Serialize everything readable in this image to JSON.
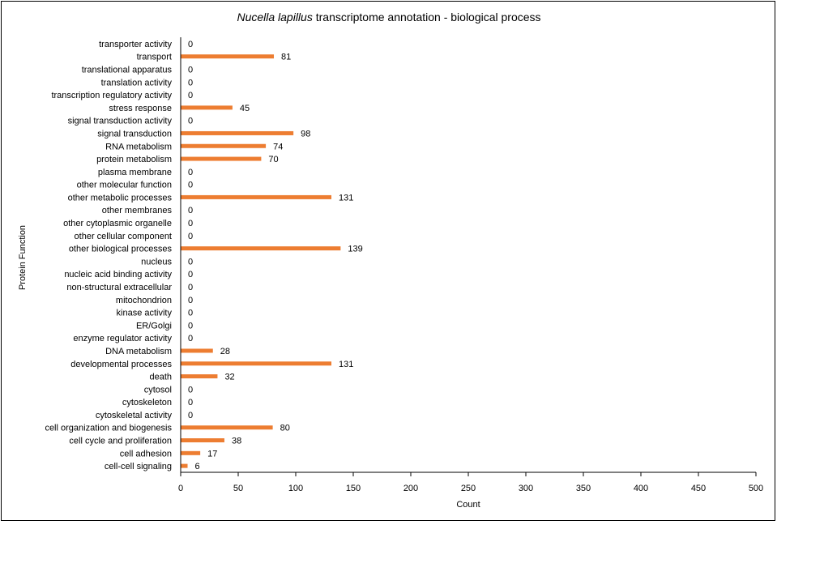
{
  "chart_data": {
    "type": "bar",
    "orientation": "horizontal",
    "title_italic": "Nucella lapillus",
    "title_rest": " transcriptome  annotation  - biological process",
    "xlabel": "Count",
    "ylabel": "Protein Function",
    "xlim": [
      0,
      500
    ],
    "xticks": [
      0,
      50,
      100,
      150,
      200,
      250,
      300,
      350,
      400,
      450,
      500
    ],
    "bar_color": "#ED7D31",
    "categories": [
      "transporter activity",
      "transport",
      "translational apparatus",
      "translation activity",
      "transcription regulatory activity",
      "stress response",
      "signal transduction activity",
      "signal transduction",
      "RNA metabolism",
      "protein metabolism",
      "plasma membrane",
      "other molecular function",
      "other metabolic processes",
      "other membranes",
      "other cytoplasmic organelle",
      "other cellular component",
      "other biological processes",
      "nucleus",
      "nucleic acid binding activity",
      "non-structural extracellular",
      "mitochondrion",
      "kinase activity",
      "ER/Golgi",
      "enzyme regulator activity",
      "DNA metabolism",
      "developmental processes",
      "death",
      "cytosol",
      "cytoskeleton",
      "cytoskeletal activity",
      "cell organization and biogenesis",
      "cell cycle and proliferation",
      "cell adhesion",
      "cell-cell signaling"
    ],
    "values": [
      0,
      81,
      0,
      0,
      0,
      45,
      0,
      98,
      74,
      70,
      0,
      0,
      131,
      0,
      0,
      0,
      139,
      0,
      0,
      0,
      0,
      0,
      0,
      0,
      28,
      131,
      32,
      0,
      0,
      0,
      80,
      38,
      17,
      6
    ]
  }
}
